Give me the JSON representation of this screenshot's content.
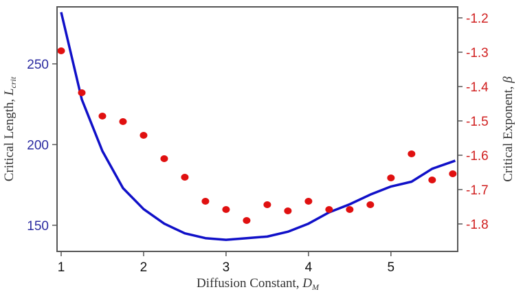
{
  "chart_data": {
    "type": "line+scatter",
    "xlabel": "Diffusion Constant, ",
    "xlabel_math": "D",
    "xlabel_sub": "M",
    "ylabel_left": "Critical Length, ",
    "ylabel_left_math": "L",
    "ylabel_left_sub": "crit",
    "ylabel_right": "Critical Exponent, ",
    "ylabel_right_math": "β",
    "xlim": [
      0.95,
      5.81
    ],
    "ylim_left": [
      133.8,
      285.3
    ],
    "ylim_right": [
      -1.88,
      -1.168
    ],
    "x_ticks": [
      "1",
      "2",
      "3",
      "4",
      "5"
    ],
    "y_left_ticks": [
      "150",
      "200",
      "250"
    ],
    "y_right_ticks": [
      "-1.2",
      "-1.3",
      "-1.4",
      "-1.5",
      "-1.6",
      "-1.7",
      "-1.8"
    ],
    "colors": {
      "left": "#1010c8",
      "right": "#e01010",
      "left_tick": "#2a2aa0",
      "right_tick": "#d02020"
    },
    "series": [
      {
        "name": "Critical Length",
        "axis": "left",
        "type": "line",
        "x": [
          1,
          1.25,
          1.5,
          1.75,
          2,
          2.25,
          2.5,
          2.75,
          3,
          3.25,
          3.5,
          3.75,
          4,
          4.25,
          4.5,
          4.75,
          5,
          5.25,
          5.5,
          5.78
        ],
        "y": [
          282,
          228,
          196,
          173,
          160,
          151,
          145,
          142,
          141,
          142,
          143,
          146,
          151,
          158,
          163,
          169,
          174,
          177,
          185,
          190
        ]
      },
      {
        "name": "Critical Exponent",
        "axis": "right",
        "type": "scatter",
        "x": [
          1,
          1.25,
          1.5,
          1.75,
          2,
          2.25,
          2.5,
          2.75,
          3,
          3.25,
          3.5,
          3.75,
          4,
          4.25,
          4.5,
          4.75,
          5,
          5.25,
          5.5,
          5.75
        ],
        "y": [
          -1.296,
          -1.418,
          -1.486,
          -1.502,
          -1.542,
          -1.61,
          -1.664,
          -1.734,
          -1.758,
          -1.79,
          -1.744,
          -1.762,
          -1.734,
          -1.758,
          -1.758,
          -1.744,
          -1.666,
          -1.596,
          -1.672,
          -1.654
        ]
      }
    ]
  }
}
